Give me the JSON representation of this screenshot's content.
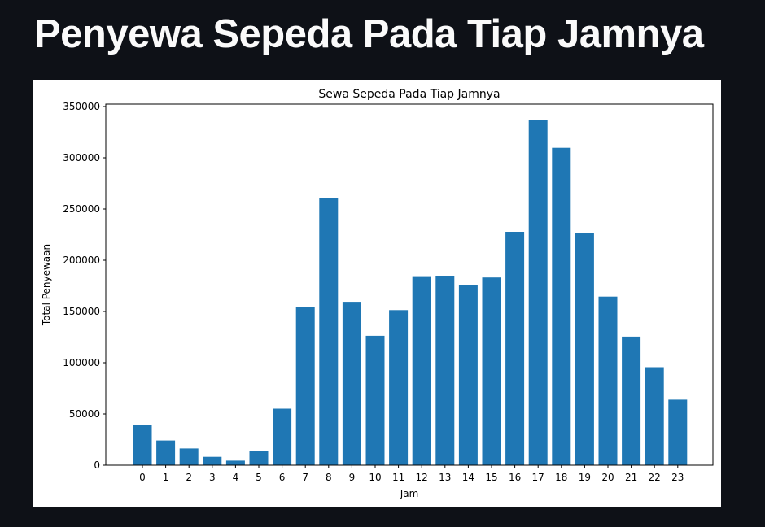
{
  "page": {
    "title": "Penyewa Sepeda Pada Tiap Jamnya"
  },
  "chart_data": {
    "type": "bar",
    "title": "Sewa Sepeda Pada Tiap Jamnya",
    "xlabel": "Jam",
    "ylabel": "Total Penyewaan",
    "categories": [
      "0",
      "1",
      "2",
      "3",
      "4",
      "5",
      "6",
      "7",
      "8",
      "9",
      "10",
      "11",
      "12",
      "13",
      "14",
      "15",
      "16",
      "17",
      "18",
      "19",
      "20",
      "21",
      "22",
      "23"
    ],
    "values": [
      39130,
      24164,
      16352,
      8174,
      4428,
      14261,
      55132,
      154171,
      261001,
      159438,
      126257,
      151320,
      184414,
      184919,
      175652,
      183149,
      227748,
      336860,
      309772,
      226789,
      164550,
      125445,
      95612,
      63941
    ],
    "ylim": [
      0,
      350000
    ],
    "yticks": [
      0,
      50000,
      100000,
      150000,
      200000,
      250000,
      300000,
      350000
    ],
    "bar_color": "#1f77b4",
    "grid": false,
    "legend": "none"
  }
}
